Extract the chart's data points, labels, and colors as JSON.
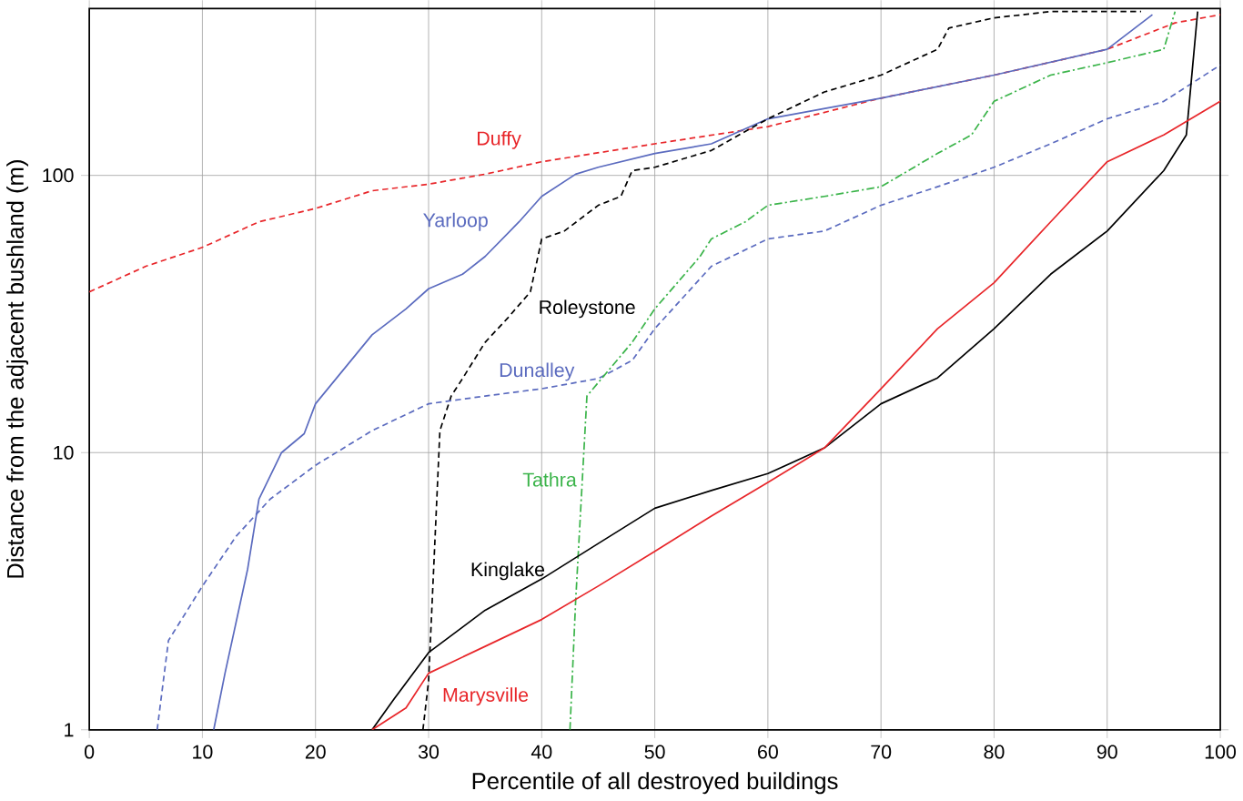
{
  "chart_data": {
    "type": "line",
    "xlabel": "Percentile of all destroyed buildings",
    "ylabel": "Distance from the adjacent bushland (m)",
    "log": "y",
    "grid": true,
    "xlim": [
      0,
      100
    ],
    "ylim": [
      1,
      400
    ],
    "xticks": [
      0,
      10,
      20,
      30,
      40,
      50,
      60,
      70,
      80,
      90,
      100
    ],
    "yticks": [
      1,
      10,
      100
    ],
    "series": [
      {
        "name": "Duffy",
        "color": "#e8262a",
        "line_style": "dashed",
        "x": [
          0,
          5,
          10,
          15,
          20,
          25,
          30,
          35,
          40,
          50,
          60,
          70,
          80,
          90,
          96,
          100
        ],
        "values": [
          38,
          47,
          55,
          68,
          76,
          88,
          93,
          101,
          112,
          130,
          150,
          190,
          230,
          285,
          355,
          380
        ]
      },
      {
        "name": "Yarloop",
        "color": "#5b6bbf",
        "line_style": "solid",
        "x": [
          11,
          12,
          14,
          15,
          17,
          19,
          20,
          25,
          28,
          30,
          33,
          35,
          38,
          40,
          43,
          45,
          50,
          55,
          60,
          70,
          80,
          90,
          94
        ],
        "values": [
          1,
          1.6,
          3.8,
          6.8,
          10,
          11.7,
          15,
          26.6,
          33,
          39,
          44,
          51,
          68,
          84,
          101,
          107,
          120,
          130,
          160,
          190,
          230,
          285,
          380
        ]
      },
      {
        "name": "Roleystone",
        "color": "#000000",
        "line_style": "dashed",
        "x": [
          29.5,
          30,
          31,
          32,
          33,
          35,
          37,
          39,
          40,
          42,
          45,
          47,
          48,
          50,
          55,
          60,
          65,
          70,
          75,
          76,
          80,
          85,
          93
        ],
        "values": [
          1,
          1.5,
          12,
          16,
          18.5,
          25,
          30.6,
          38,
          59,
          63,
          78,
          84,
          104,
          107,
          123,
          160,
          200,
          230,
          285,
          340,
          370,
          390,
          390
        ]
      },
      {
        "name": "Dunalley",
        "color": "#5b6bbf",
        "line_style": "dashed",
        "x": [
          6,
          7,
          10,
          13,
          16,
          20,
          25,
          30,
          35,
          40,
          45,
          48,
          50,
          55,
          60,
          65,
          70,
          75,
          80,
          85,
          90,
          95,
          100
        ],
        "values": [
          1,
          2.1,
          3.3,
          5,
          6.8,
          9,
          12,
          15,
          16,
          17,
          18.5,
          21.5,
          28,
          47,
          59,
          63,
          78,
          91,
          107,
          130,
          160,
          185,
          250
        ]
      },
      {
        "name": "Tathra",
        "color": "#3bb44a",
        "line_style": "dashdot",
        "x": [
          42.5,
          43,
          44,
          46,
          48,
          50,
          52,
          54,
          55,
          58,
          60,
          65,
          70,
          75,
          78,
          80,
          85,
          90,
          95,
          96
        ],
        "values": [
          1,
          2.9,
          16,
          20,
          25,
          33,
          41,
          51,
          59,
          68,
          78,
          84,
          91,
          120,
          140,
          185,
          230,
          255,
          285,
          390
        ]
      },
      {
        "name": "Kinglake",
        "color": "#000000",
        "line_style": "solid",
        "x": [
          25,
          27,
          30,
          35,
          40,
          45,
          50,
          55,
          60,
          65,
          70,
          75,
          80,
          85,
          90,
          95,
          97,
          98
        ],
        "values": [
          1,
          1.3,
          1.9,
          2.7,
          3.5,
          4.7,
          6.3,
          7.3,
          8.4,
          10.4,
          15,
          18.6,
          28,
          44,
          63,
          104,
          140,
          390
        ]
      },
      {
        "name": "Marysville",
        "color": "#e8262a",
        "line_style": "solid",
        "x": [
          25,
          28,
          30,
          35,
          40,
          45,
          50,
          55,
          60,
          65,
          70,
          75,
          80,
          85,
          90,
          95,
          100
        ],
        "values": [
          1,
          1.2,
          1.6,
          2,
          2.5,
          3.3,
          4.4,
          5.9,
          7.8,
          10.4,
          17,
          28,
          41,
          68,
          112,
          140,
          185
        ]
      }
    ]
  }
}
